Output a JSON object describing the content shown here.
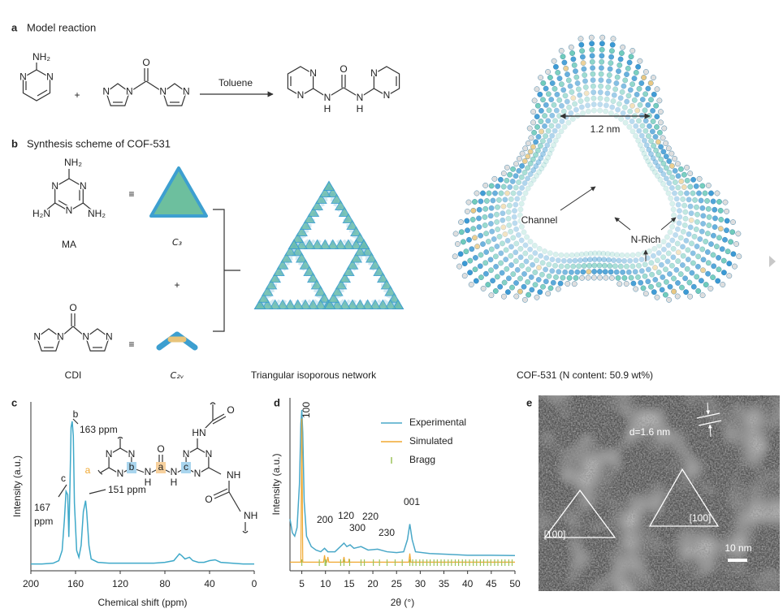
{
  "panel_a": {
    "label": "a",
    "title": "Model reaction",
    "plus": "+",
    "solvent": "Toluene",
    "amine_atoms": [
      "NH₂",
      "N",
      "N"
    ],
    "cdi_atoms": [
      "O",
      "N",
      "N",
      "N",
      "N"
    ],
    "product_atoms": [
      "O",
      "N",
      "N",
      "N",
      "N",
      "N",
      "N",
      "H",
      "H"
    ]
  },
  "panel_b": {
    "label": "b",
    "title": "Synthesis scheme of COF-531",
    "ma_atoms": [
      "NH₂",
      "N",
      "N",
      "N",
      "H₂N",
      "NH₂"
    ],
    "ma_label": "MA",
    "equiv": [
      "≡",
      "≡"
    ],
    "c3_label": "C₃",
    "plus": "+",
    "cdi_atoms": [
      "O",
      "N",
      "N",
      "N",
      "N"
    ],
    "cdi_label": "CDI",
    "c2v_label": "C₂ᵥ",
    "network_label": "Triangular isoporous network",
    "cof_labels": {
      "pore": "1.2 nm",
      "channel": "Channel",
      "n_rich": "N-Rich",
      "caption": "COF-531 (N content: 50.9 wt%)"
    }
  },
  "panel_c": {
    "label": "c",
    "inset_atoms": [
      "N",
      "N",
      "N",
      "b",
      "N",
      "H",
      "O",
      "a",
      "N",
      "H",
      "c",
      "N",
      "N",
      "N",
      "HN",
      "O",
      "NH",
      "O",
      "NH"
    ]
  },
  "panel_d": {
    "label": "d"
  },
  "panel_e": {
    "label": "e",
    "spacing": "d=1.6 nm",
    "directions": [
      "[100]",
      "[100]"
    ],
    "scale_bar": "10 nm"
  },
  "chart_data": [
    {
      "type": "line",
      "xlabel": "Chemical shift (ppm)",
      "ylabel": "Intensity (a.u.)",
      "xlim": [
        200,
        0
      ],
      "xticks": [
        200,
        160,
        120,
        80,
        40,
        0
      ],
      "ylim": [
        0,
        1
      ],
      "annotations": [
        "b",
        "163 ppm",
        "c",
        "167",
        "ppm",
        "a",
        "151 ppm"
      ],
      "series": [
        {
          "color": "#3fa9c9",
          "x": [
            200,
            190,
            180,
            175,
            172,
            170,
            168.5,
            167,
            166,
            165,
            164,
            163,
            162,
            161,
            159,
            157,
            155,
            153,
            151,
            150,
            148,
            146,
            140,
            130,
            120,
            110,
            100,
            90,
            80,
            72,
            67,
            65,
            62,
            58,
            55,
            50,
            45,
            40,
            35,
            30,
            20,
            10,
            0
          ],
          "values": [
            0.04,
            0.04,
            0.045,
            0.06,
            0.12,
            0.3,
            0.47,
            0.45,
            0.2,
            0.5,
            0.85,
            0.885,
            0.8,
            0.4,
            0.12,
            0.08,
            0.15,
            0.35,
            0.415,
            0.35,
            0.15,
            0.07,
            0.05,
            0.045,
            0.045,
            0.045,
            0.045,
            0.045,
            0.05,
            0.06,
            0.1,
            0.09,
            0.07,
            0.08,
            0.06,
            0.05,
            0.05,
            0.06,
            0.065,
            0.05,
            0.045,
            0.04,
            0.04
          ]
        }
      ]
    },
    {
      "type": "line",
      "xlabel": "2θ (°)",
      "ylabel": "Intensity (a.u.)",
      "xlim": [
        2.5,
        50
      ],
      "xticks": [
        5,
        10,
        15,
        20,
        25,
        30,
        35,
        40,
        45,
        50
      ],
      "ylim": [
        0,
        1
      ],
      "legend": "upper right",
      "annotations": [
        "100",
        "200",
        "120",
        "300",
        "220",
        "230",
        "001"
      ],
      "series": [
        {
          "name": "Experimental",
          "color": "#4aa8c8",
          "x": [
            2.5,
            3,
            3.5,
            4,
            4.5,
            4.8,
            5,
            5.2,
            5.5,
            6,
            7,
            8,
            9,
            9.8,
            10.5,
            12,
            13.9,
            14.5,
            15.2,
            16,
            17.5,
            19,
            21,
            23,
            25,
            26.5,
            27.3,
            27.8,
            28.3,
            29,
            32,
            36,
            40,
            45,
            50
          ],
          "values": [
            0.3,
            0.22,
            0.2,
            0.25,
            0.5,
            0.85,
            0.93,
            0.8,
            0.4,
            0.2,
            0.14,
            0.12,
            0.11,
            0.13,
            0.11,
            0.11,
            0.16,
            0.14,
            0.15,
            0.13,
            0.14,
            0.12,
            0.125,
            0.11,
            0.105,
            0.11,
            0.18,
            0.27,
            0.18,
            0.11,
            0.1,
            0.095,
            0.09,
            0.09,
            0.088
          ]
        },
        {
          "name": "Simulated",
          "color": "#f0a830",
          "x": [
            2.5,
            4.8,
            5,
            5.2,
            9.6,
            9.8,
            10,
            10.3,
            10.5,
            10.7,
            13.7,
            13.9,
            14.1,
            14.9,
            15,
            15.1,
            27.6,
            27.8,
            28,
            50
          ],
          "values": [
            0.05,
            0.05,
            0.88,
            0.05,
            0.05,
            0.09,
            0.05,
            0.05,
            0.08,
            0.05,
            0.05,
            0.08,
            0.05,
            0.05,
            0.07,
            0.05,
            0.05,
            0.1,
            0.05,
            0.05
          ]
        },
        {
          "name": "Bragg",
          "color": "#9cc35a",
          "x": [
            5,
            8.7,
            9.9,
            10.1,
            13.2,
            13.9,
            15.1,
            17.5,
            18.2,
            20.1,
            21.4,
            23,
            24.7,
            26.2,
            27.8,
            28.4,
            29.1,
            29.9,
            30.6,
            31.4,
            32.1,
            32.9,
            33.6,
            34.4,
            35.1,
            35.9,
            36.6,
            37.4,
            38.1,
            38.9,
            39.6,
            40.4,
            41.2,
            41.9,
            42.7,
            43.4,
            44.2,
            44.9,
            45.7,
            46.4,
            47.2,
            47.9,
            48.7,
            49.4
          ]
        }
      ]
    }
  ]
}
